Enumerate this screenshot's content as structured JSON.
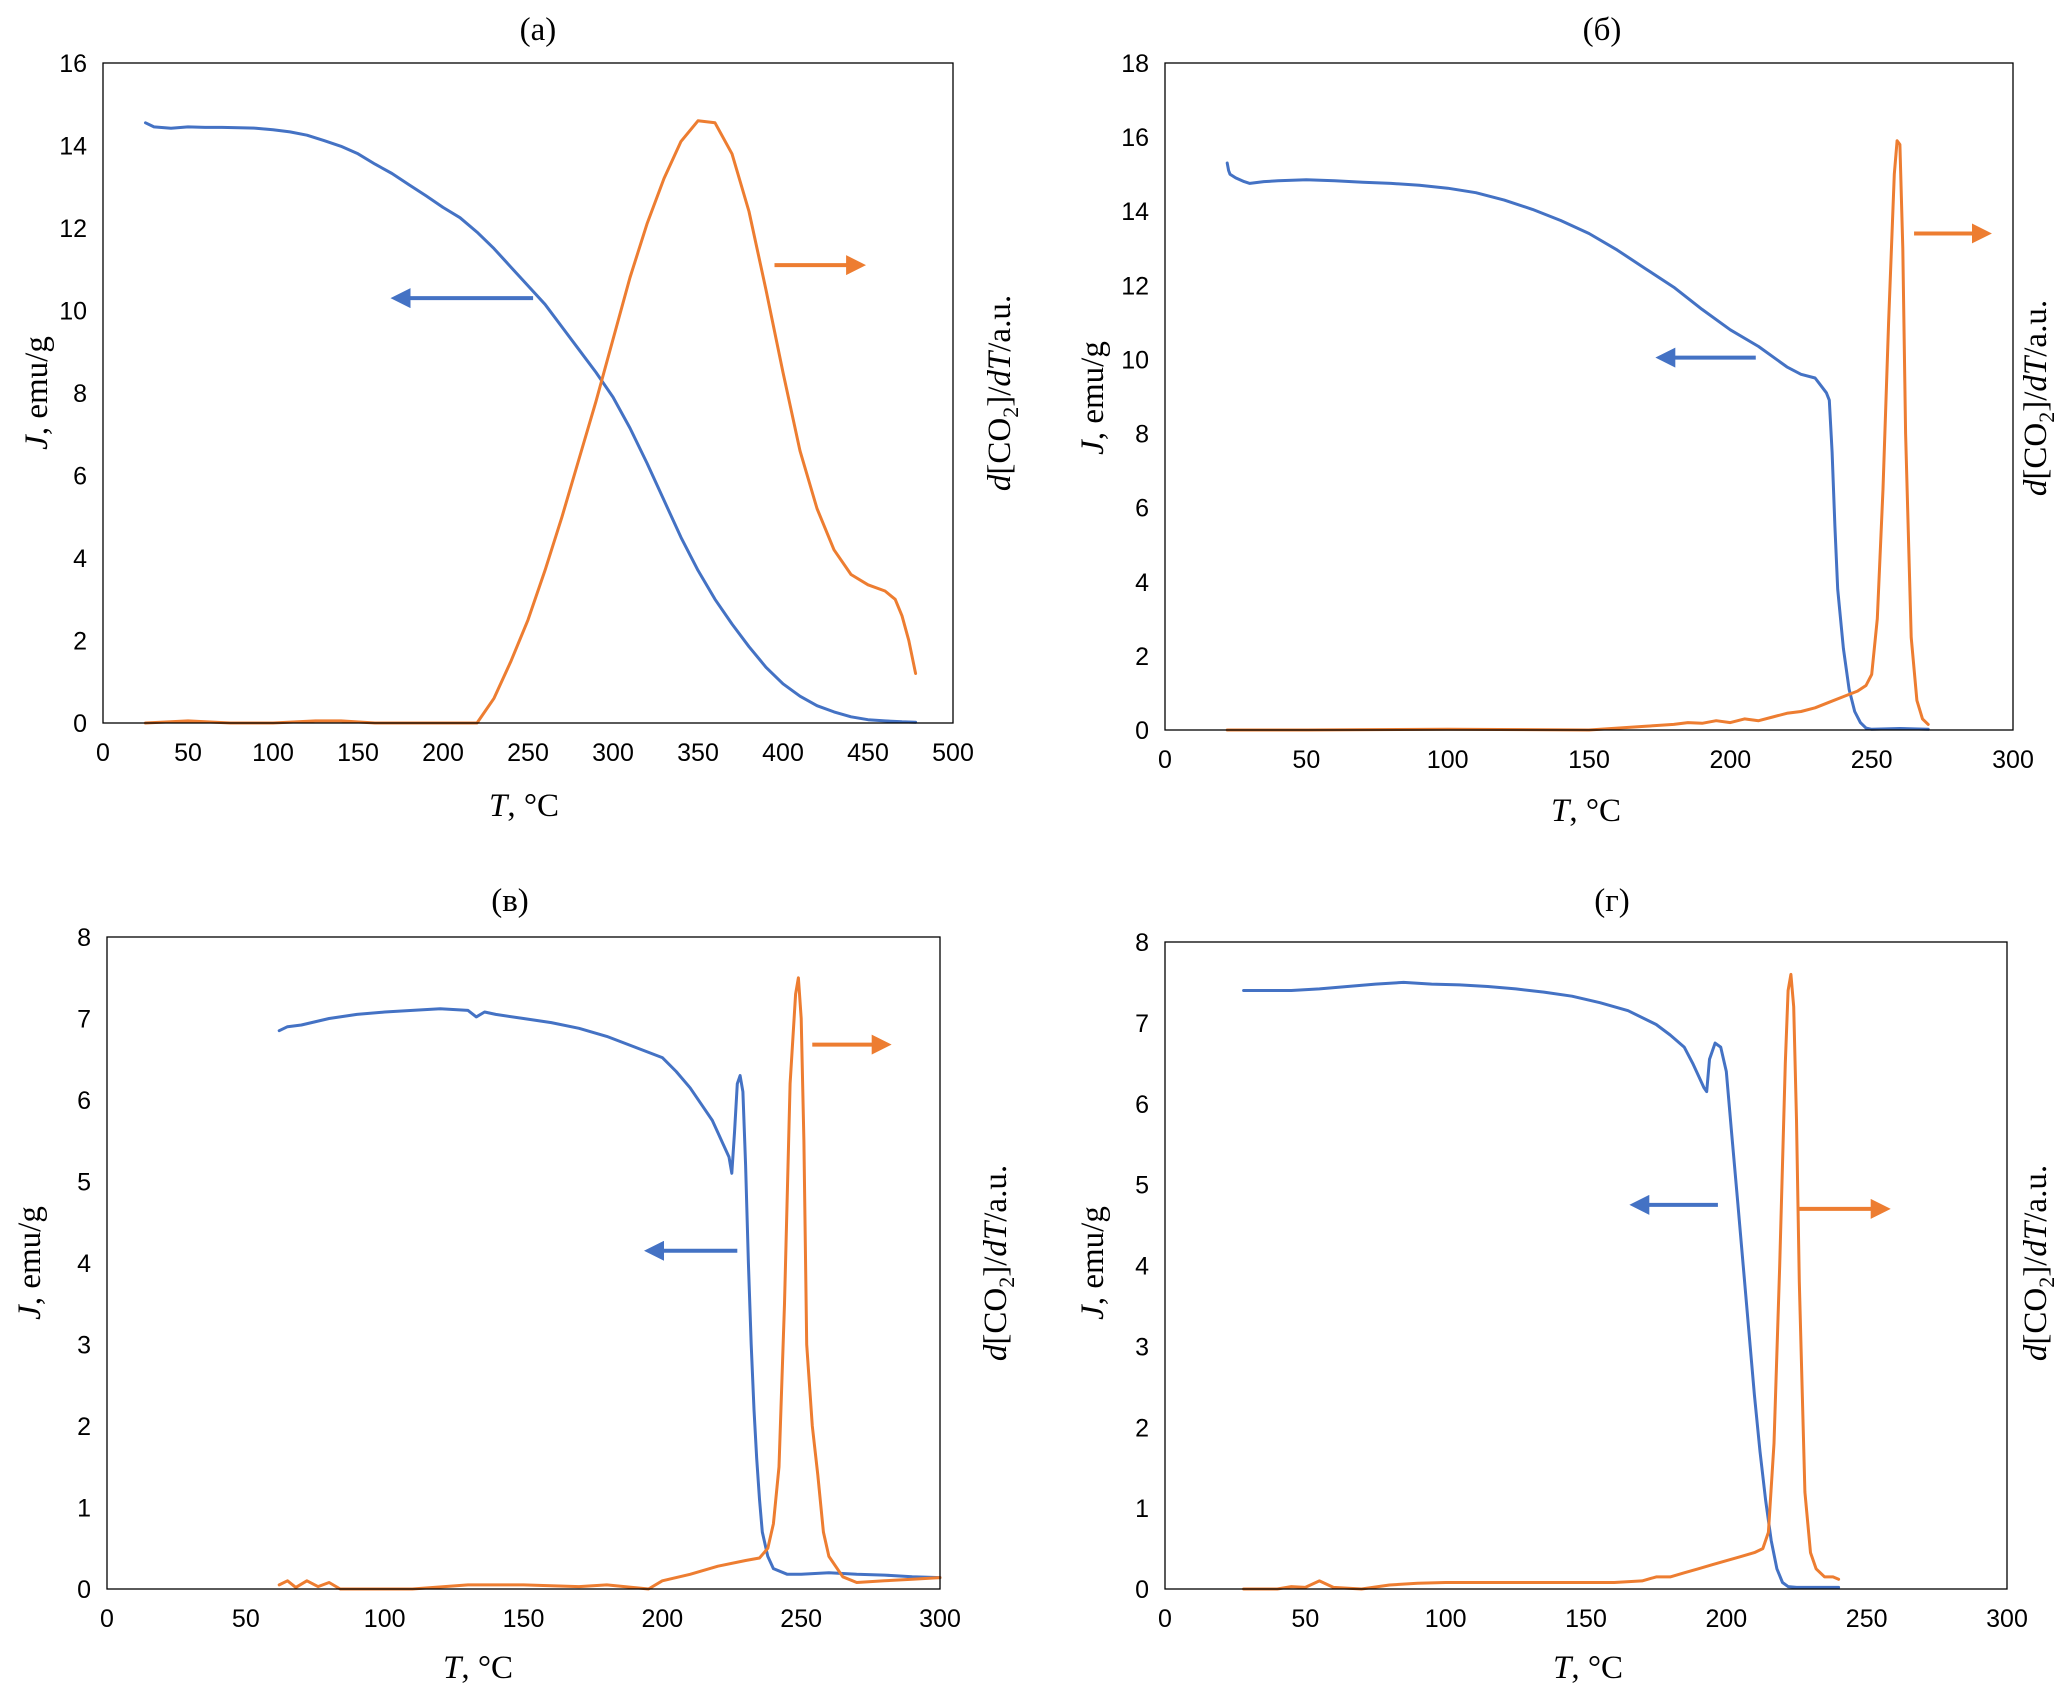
{
  "colors": {
    "magnetization": "#4472C4",
    "co2": "#ED7D31"
  },
  "chart_data": [
    {
      "type": "line",
      "panel_label": "(a)",
      "title": "(a)",
      "xlabel_italic": "T",
      "xlabel_rest": ", °C",
      "ylabel_italic": "J",
      "ylabel_rest": ", emu/g",
      "y2label": "d[CO2]/dT/a.u.",
      "y2label_d": "d",
      "y2label_co": "[CO",
      "y2label_sub": "2",
      "y2label_close": "]/",
      "y2label_dT": "dT",
      "y2label_au": "/a.u.",
      "xlim": [
        0,
        500
      ],
      "ylim": [
        0,
        16
      ],
      "xticks": [
        0,
        50,
        100,
        150,
        200,
        250,
        300,
        350,
        400,
        450,
        500
      ],
      "yticks": [
        0,
        2,
        4,
        6,
        8,
        10,
        12,
        14,
        16
      ],
      "series": [
        {
          "name": "J",
          "axis": "left",
          "color": "#4472C4",
          "x": [
            25,
            30,
            40,
            50,
            60,
            70,
            80,
            90,
            100,
            110,
            120,
            130,
            140,
            150,
            160,
            170,
            180,
            190,
            200,
            210,
            220,
            230,
            240,
            250,
            260,
            270,
            280,
            290,
            300,
            310,
            320,
            330,
            340,
            350,
            360,
            370,
            380,
            390,
            400,
            410,
            420,
            430,
            440,
            450,
            460,
            470,
            478
          ],
          "y": [
            14.55,
            14.45,
            14.42,
            14.45,
            14.44,
            14.44,
            14.43,
            14.42,
            14.38,
            14.33,
            14.25,
            14.12,
            13.98,
            13.8,
            13.55,
            13.32,
            13.05,
            12.78,
            12.5,
            12.25,
            11.9,
            11.5,
            11.05,
            10.6,
            10.15,
            9.6,
            9.05,
            8.5,
            7.9,
            7.15,
            6.3,
            5.4,
            4.5,
            3.7,
            3.0,
            2.4,
            1.85,
            1.35,
            0.95,
            0.65,
            0.42,
            0.27,
            0.15,
            0.08,
            0.05,
            0.03,
            0.02
          ]
        },
        {
          "name": "d[CO2]/dT",
          "axis": "right",
          "color": "#ED7D31",
          "x": [
            25,
            50,
            75,
            100,
            125,
            140,
            160,
            220,
            230,
            240,
            250,
            260,
            270,
            280,
            290,
            300,
            310,
            320,
            330,
            340,
            350,
            360,
            370,
            380,
            390,
            400,
            410,
            420,
            430,
            440,
            450,
            460,
            466,
            470,
            474,
            478
          ],
          "y": [
            0.0,
            0.05,
            0.0,
            0.0,
            0.05,
            0.05,
            0.0,
            0.0,
            0.6,
            1.5,
            2.5,
            3.7,
            5.0,
            6.4,
            7.8,
            9.3,
            10.8,
            12.1,
            13.2,
            14.1,
            14.6,
            14.55,
            13.8,
            12.4,
            10.5,
            8.5,
            6.6,
            5.2,
            4.2,
            3.6,
            3.35,
            3.2,
            3.0,
            2.6,
            2.0,
            1.2
          ]
        }
      ],
      "annotations": [
        {
          "text": "arrow pointing left (J axis)",
          "color": "#4472C4",
          "direction": "left",
          "x_from": 253,
          "x_to": 175,
          "y": 10.3
        },
        {
          "text": "arrow pointing right (d[CO2]/dT axis)",
          "color": "#ED7D31",
          "direction": "right",
          "x_from": 395,
          "x_to": 443,
          "y": 11.1
        }
      ]
    },
    {
      "type": "line",
      "panel_label": "(б)",
      "title": "(б)",
      "xlabel_italic": "T",
      "xlabel_rest": ", °C",
      "ylabel_italic": "J",
      "ylabel_rest": ", emu/g",
      "y2label": "d[CO2]/dT/a.u.",
      "y2label_d": "d",
      "y2label_co": "[CO",
      "y2label_sub": "2",
      "y2label_close": "]/",
      "y2label_dT": "dT",
      "y2label_au": "/a.u.",
      "xlim": [
        0,
        300
      ],
      "ylim": [
        0,
        18
      ],
      "xticks": [
        0,
        50,
        100,
        150,
        200,
        250,
        300
      ],
      "yticks": [
        0,
        2,
        4,
        6,
        8,
        10,
        12,
        14,
        16,
        18
      ],
      "series": [
        {
          "name": "J",
          "axis": "left",
          "color": "#4472C4",
          "x": [
            22,
            22.5,
            23,
            25,
            28,
            30,
            35,
            40,
            50,
            60,
            70,
            80,
            90,
            100,
            110,
            120,
            130,
            140,
            150,
            160,
            170,
            180,
            190,
            200,
            210,
            220,
            225,
            230,
            232,
            234,
            235,
            236,
            237,
            238,
            240,
            242,
            244,
            246,
            248,
            250,
            255,
            260,
            265,
            270
          ],
          "y": [
            15.3,
            15.1,
            15.0,
            14.9,
            14.8,
            14.75,
            14.8,
            14.82,
            14.85,
            14.82,
            14.78,
            14.75,
            14.7,
            14.62,
            14.5,
            14.3,
            14.05,
            13.75,
            13.4,
            12.95,
            12.45,
            11.95,
            11.35,
            10.8,
            10.35,
            9.8,
            9.6,
            9.5,
            9.3,
            9.1,
            8.9,
            7.5,
            5.5,
            3.8,
            2.2,
            1.1,
            0.5,
            0.2,
            0.05,
            0.02,
            0.03,
            0.04,
            0.03,
            0.02
          ]
        },
        {
          "name": "d[CO2]/dT",
          "axis": "right",
          "color": "#ED7D31",
          "x": [
            22,
            50,
            100,
            150,
            160,
            170,
            180,
            185,
            190,
            195,
            200,
            205,
            210,
            215,
            220,
            225,
            230,
            235,
            240,
            245,
            248,
            250,
            252,
            254,
            256,
            258,
            259,
            260,
            261,
            262,
            264,
            266,
            268,
            270
          ],
          "y": [
            0.0,
            0.0,
            0.02,
            0.0,
            0.05,
            0.1,
            0.15,
            0.2,
            0.18,
            0.25,
            0.2,
            0.3,
            0.25,
            0.35,
            0.45,
            0.5,
            0.6,
            0.75,
            0.9,
            1.05,
            1.2,
            1.5,
            3.0,
            6.5,
            11.0,
            15.0,
            15.9,
            15.8,
            13.0,
            8.0,
            2.5,
            0.8,
            0.3,
            0.15
          ]
        }
      ],
      "annotations": [
        {
          "text": "arrow pointing left (J axis)",
          "color": "#4472C4",
          "direction": "left",
          "x_from": 209,
          "x_to": 177,
          "y": 10.05
        },
        {
          "text": "arrow pointing right (d[CO2]/dT axis)",
          "color": "#ED7D31",
          "direction": "right",
          "x_from": 265,
          "x_to": 289,
          "y": 13.4
        }
      ]
    },
    {
      "type": "line",
      "panel_label": "(в)",
      "title": "(в)",
      "xlabel_italic": "T",
      "xlabel_rest": ", °C",
      "ylabel_italic": "J",
      "ylabel_rest": ", emu/g",
      "y2label": "d[CO2]/dT/a.u.",
      "y2label_d": "d",
      "y2label_co": "[CO",
      "y2label_sub": "2",
      "y2label_close": "]/",
      "y2label_dT": "dT",
      "y2label_au": "/a.u.",
      "xlim": [
        0,
        300
      ],
      "ylim": [
        0,
        8
      ],
      "xticks": [
        0,
        50,
        100,
        150,
        200,
        250,
        300
      ],
      "yticks": [
        0,
        1,
        2,
        3,
        4,
        5,
        6,
        7,
        8
      ],
      "series": [
        {
          "name": "J",
          "axis": "left",
          "color": "#4472C4",
          "x": [
            62,
            65,
            70,
            80,
            90,
            100,
            110,
            120,
            130,
            133,
            136,
            140,
            150,
            160,
            170,
            180,
            190,
            200,
            205,
            210,
            215,
            218,
            220,
            222,
            224,
            225,
            226,
            227,
            228,
            229,
            230,
            231,
            232,
            233,
            234,
            235,
            236,
            238,
            240,
            245,
            250,
            260,
            270,
            280,
            290,
            300
          ],
          "y": [
            6.85,
            6.9,
            6.92,
            7.0,
            7.05,
            7.08,
            7.1,
            7.12,
            7.1,
            7.02,
            7.08,
            7.05,
            7.0,
            6.95,
            6.88,
            6.78,
            6.65,
            6.52,
            6.35,
            6.15,
            5.9,
            5.75,
            5.6,
            5.45,
            5.3,
            5.1,
            5.6,
            6.2,
            6.3,
            6.1,
            5.2,
            4.0,
            3.0,
            2.2,
            1.6,
            1.1,
            0.7,
            0.4,
            0.25,
            0.18,
            0.18,
            0.2,
            0.18,
            0.17,
            0.15,
            0.14
          ]
        },
        {
          "name": "d[CO2]/dT",
          "axis": "right",
          "color": "#ED7D31",
          "x": [
            62,
            65,
            68,
            72,
            76,
            80,
            84,
            110,
            130,
            150,
            170,
            180,
            195,
            200,
            210,
            220,
            230,
            235,
            238,
            240,
            242,
            244,
            246,
            248,
            249,
            250,
            251,
            252,
            254,
            256,
            258,
            260,
            265,
            270,
            280,
            290,
            300
          ],
          "y": [
            0.05,
            0.1,
            0.02,
            0.1,
            0.03,
            0.08,
            0.0,
            0.0,
            0.05,
            0.05,
            0.03,
            0.05,
            0.0,
            0.1,
            0.18,
            0.28,
            0.35,
            0.38,
            0.5,
            0.8,
            1.5,
            3.5,
            6.2,
            7.3,
            7.5,
            7.0,
            5.5,
            3.0,
            2.0,
            1.4,
            0.7,
            0.4,
            0.15,
            0.08,
            0.1,
            0.12,
            0.14
          ]
        }
      ],
      "annotations": [
        {
          "text": "arrow pointing left (J axis)",
          "color": "#4472C4",
          "direction": "left",
          "x_from": 227,
          "x_to": 197,
          "y": 4.15
        },
        {
          "text": "arrow pointing right (d[CO2]/dT axis)",
          "color": "#ED7D31",
          "direction": "right",
          "x_from": 254,
          "x_to": 279,
          "y": 6.68
        }
      ]
    },
    {
      "type": "line",
      "panel_label": "(г)",
      "title": "(г)",
      "xlabel_italic": "T",
      "xlabel_rest": ", °C",
      "ylabel_italic": "J",
      "ylabel_rest": ", emu/g",
      "y2label": "d[CO2]/dT/a.u.",
      "y2label_d": "d",
      "y2label_co": "[CO",
      "y2label_sub": "2",
      "y2label_close": "]/",
      "y2label_dT": "dT",
      "y2label_au": "/a.u.",
      "xlim": [
        0,
        300
      ],
      "ylim": [
        0,
        8
      ],
      "xticks": [
        0,
        50,
        100,
        150,
        200,
        250,
        300
      ],
      "yticks": [
        0,
        1,
        2,
        3,
        4,
        5,
        6,
        7,
        8
      ],
      "series": [
        {
          "name": "J",
          "axis": "left",
          "color": "#4472C4",
          "x": [
            28,
            35,
            45,
            55,
            65,
            75,
            85,
            95,
            105,
            115,
            125,
            135,
            145,
            155,
            165,
            175,
            180,
            185,
            188,
            190,
            192,
            193,
            194,
            196,
            198,
            200,
            202,
            204,
            206,
            208,
            210,
            212,
            214,
            216,
            218,
            220,
            222,
            225,
            230,
            235,
            240
          ],
          "y": [
            7.4,
            7.4,
            7.4,
            7.42,
            7.45,
            7.48,
            7.5,
            7.48,
            7.47,
            7.45,
            7.42,
            7.38,
            7.33,
            7.25,
            7.15,
            6.98,
            6.85,
            6.7,
            6.5,
            6.35,
            6.2,
            6.15,
            6.55,
            6.75,
            6.7,
            6.4,
            5.6,
            4.8,
            4.0,
            3.2,
            2.4,
            1.7,
            1.1,
            0.6,
            0.25,
            0.08,
            0.03,
            0.02,
            0.02,
            0.02,
            0.02
          ]
        },
        {
          "name": "d[CO2]/dT",
          "axis": "right",
          "color": "#ED7D31",
          "x": [
            28,
            35,
            40,
            45,
            50,
            55,
            60,
            70,
            80,
            90,
            100,
            120,
            140,
            160,
            170,
            175,
            180,
            185,
            190,
            195,
            200,
            205,
            210,
            213,
            215,
            217,
            219,
            221,
            222,
            223,
            224,
            225,
            226,
            228,
            230,
            232,
            235,
            238,
            240
          ],
          "y": [
            0.0,
            0.0,
            0.0,
            0.03,
            0.02,
            0.1,
            0.02,
            0.0,
            0.05,
            0.07,
            0.08,
            0.08,
            0.08,
            0.08,
            0.1,
            0.15,
            0.15,
            0.2,
            0.25,
            0.3,
            0.35,
            0.4,
            0.45,
            0.5,
            0.7,
            1.8,
            4.0,
            6.5,
            7.4,
            7.6,
            7.2,
            5.8,
            3.8,
            1.2,
            0.45,
            0.25,
            0.15,
            0.15,
            0.12
          ]
        }
      ],
      "annotations": [
        {
          "text": "arrow pointing left (J axis)",
          "color": "#4472C4",
          "direction": "left",
          "x_from": 197,
          "x_to": 169,
          "y": 4.75
        },
        {
          "text": "arrow pointing right (d[CO2]/dT axis)",
          "color": "#ED7D31",
          "direction": "right",
          "x_from": 226,
          "x_to": 255,
          "y": 4.7
        }
      ]
    }
  ]
}
